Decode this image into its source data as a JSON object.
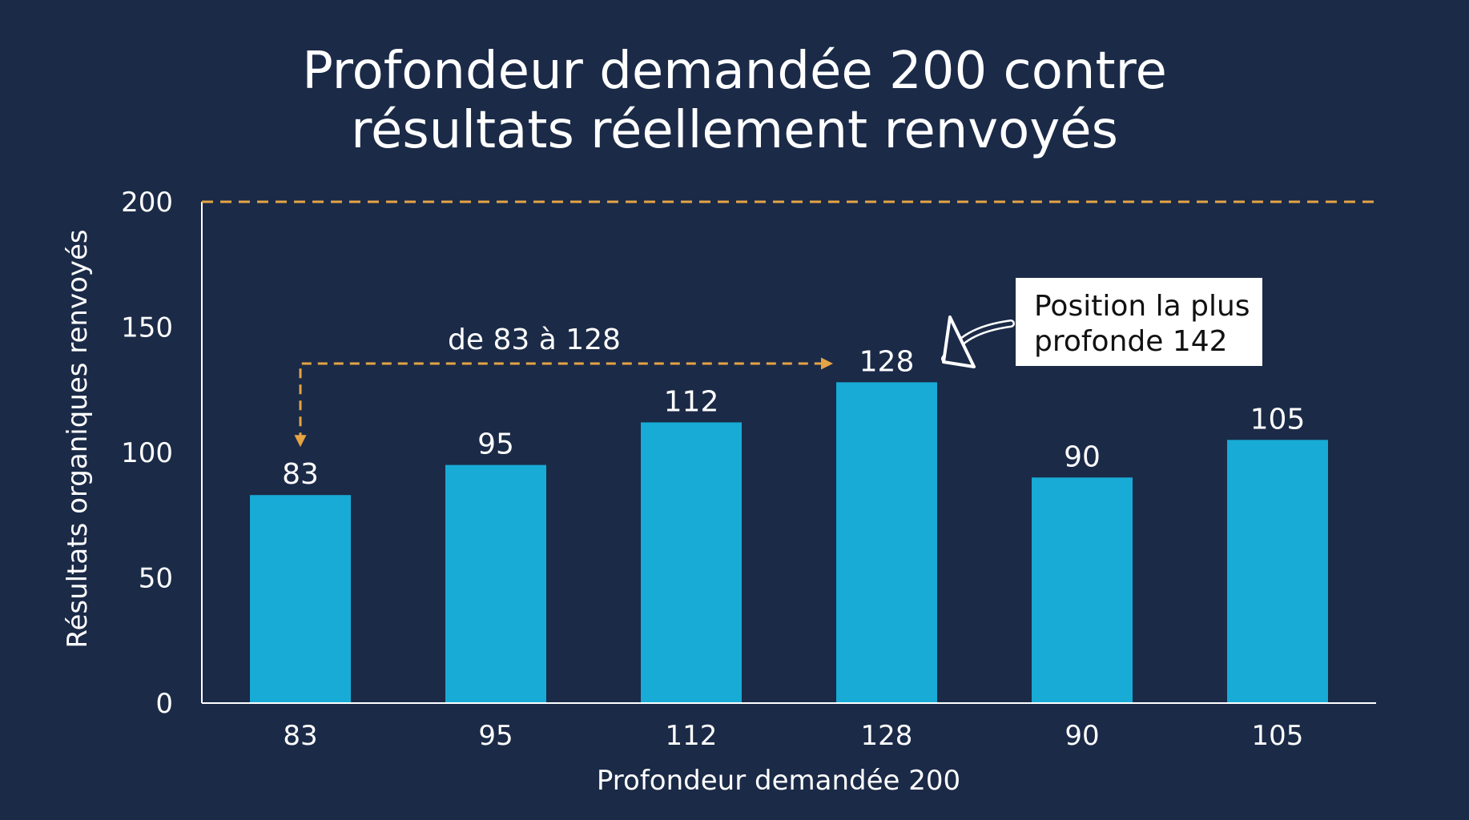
{
  "chart_data": {
    "type": "bar",
    "title_lines": [
      "Profondeur demandée 200 contre",
      "résultats réellement renvoyés"
    ],
    "xlabel": "Profondeur demandée 200",
    "ylabel": "Résultats organiques renvoyés",
    "categories": [
      "83",
      "95",
      "112",
      "128",
      "90",
      "105"
    ],
    "values": [
      83,
      95,
      112,
      128,
      90,
      105
    ],
    "ylim": [
      0,
      200
    ],
    "yticks": [
      0,
      50,
      100,
      150,
      200
    ],
    "grid": false,
    "reference_line": {
      "value": 200,
      "style": "dashed"
    },
    "annotations": {
      "range_label": "de 83 à 128",
      "range_from_index": 0,
      "range_to_index": 3,
      "callout_lines": [
        "Position la plus",
        "profonde 142"
      ],
      "callout_target_index": 3
    },
    "colors": {
      "bar": "#17abd6",
      "reference": "#e5a444",
      "range_arrow": "#e5a444",
      "background": "#1b2a47",
      "callout_bg": "#ffffff"
    }
  }
}
